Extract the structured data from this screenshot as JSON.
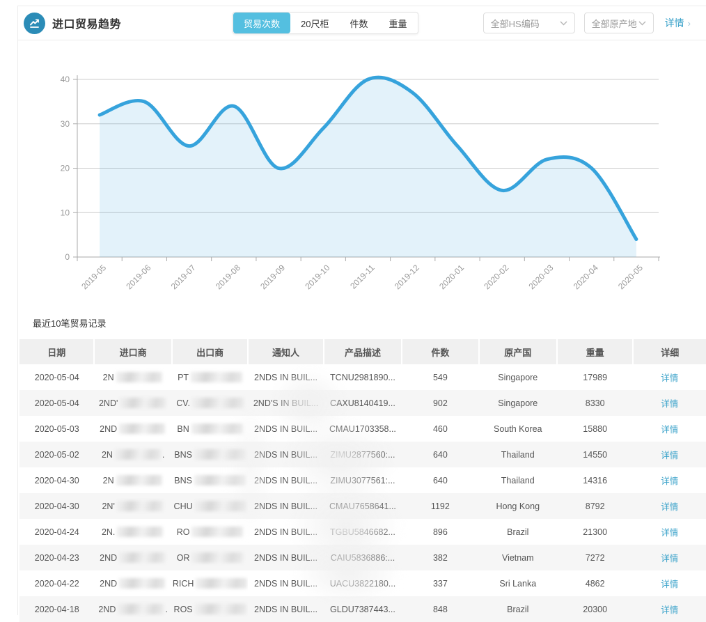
{
  "header": {
    "title": "进口贸易趋势",
    "metric_tabs": [
      {
        "label": "贸易次数",
        "active": true
      },
      {
        "label": "20尺柜",
        "active": false
      },
      {
        "label": "件数",
        "active": false
      },
      {
        "label": "重量",
        "active": false
      }
    ],
    "hs_filter": "全部HS编码",
    "origin_filter": "全部原产地",
    "details_link": "详情",
    "details_arrow": "›"
  },
  "colors": {
    "accent": "#54bfe0",
    "line": "#36a3dc",
    "fill": "rgba(54,163,220,0.14)",
    "link": "#3aa2ca",
    "icon_bg": "#2b8cb7"
  },
  "chart_data": {
    "type": "area",
    "smooth": true,
    "grid": true,
    "x": [
      "2019-05",
      "2019-06",
      "2019-07",
      "2019-08",
      "2019-09",
      "2019-10",
      "2019-11",
      "2019-12",
      "2020-01",
      "2020-02",
      "2020-03",
      "2020-04",
      "2020-05"
    ],
    "values": [
      32,
      35,
      25,
      34,
      20,
      29,
      40,
      37,
      25,
      15,
      22,
      20,
      4
    ],
    "ylim": [
      0,
      40
    ],
    "yticks": [
      0,
      10,
      20,
      30,
      40
    ],
    "xlabel": "",
    "ylabel": "",
    "line_color": "#36a3dc",
    "fill_color": "rgba(54,163,220,0.14)"
  },
  "table": {
    "section_title": "最近10笔贸易记录",
    "columns": [
      "日期",
      "进口商",
      "出口商",
      "通知人",
      "产品描述",
      "件数",
      "原产国",
      "重量",
      "详细"
    ],
    "detail_label": "详情",
    "rows": [
      {
        "date": "2020-05-04",
        "importer": "2N",
        "importer_suffix": "",
        "exporter": "PT",
        "notify": "2NDS IN BUIL...",
        "product": "TCNU2981890...",
        "pieces": "549",
        "origin": "Singapore",
        "weight": "17989"
      },
      {
        "date": "2020-05-04",
        "importer": "2ND'",
        "importer_suffix": "",
        "exporter": "CV.",
        "notify": "2ND'S IN BUIL...",
        "product": "CAXU8140419...",
        "pieces": "902",
        "origin": "Singapore",
        "weight": "8330"
      },
      {
        "date": "2020-05-03",
        "importer": "2ND",
        "importer_suffix": "",
        "exporter": "BN",
        "notify": "2NDS IN BUIL...",
        "product": "CMAU1703358...",
        "pieces": "460",
        "origin": "South Korea",
        "weight": "15880"
      },
      {
        "date": "2020-05-02",
        "importer": "2N",
        "importer_suffix": ".",
        "exporter": "BNS",
        "notify": "2NDS IN BUIL...",
        "product": "ZIMU2877560:...",
        "pieces": "640",
        "origin": "Thailand",
        "weight": "14550"
      },
      {
        "date": "2020-04-30",
        "importer": "2N",
        "importer_suffix": "",
        "exporter": "BNS",
        "notify": "2NDS IN BUIL...",
        "product": "ZIMU3077561:...",
        "pieces": "640",
        "origin": "Thailand",
        "weight": "14316"
      },
      {
        "date": "2020-04-30",
        "importer": "2N'",
        "importer_suffix": "",
        "exporter": "CHU",
        "notify": "2NDS IN BUIL...",
        "product": "CMAU7658641...",
        "pieces": "1192",
        "origin": "Hong Kong",
        "weight": "8792"
      },
      {
        "date": "2020-04-24",
        "importer": "2N.",
        "importer_suffix": "",
        "exporter": "RO",
        "notify": "2NDS IN BUIL...",
        "product": "TGBU5846682...",
        "pieces": "896",
        "origin": "Brazil",
        "weight": "21300"
      },
      {
        "date": "2020-04-23",
        "importer": "2ND",
        "importer_suffix": "",
        "exporter": "OR",
        "notify": "2NDS IN BUIL...",
        "product": "CAIU5836886:...",
        "pieces": "382",
        "origin": "Vietnam",
        "weight": "7272"
      },
      {
        "date": "2020-04-22",
        "importer": "2ND",
        "importer_suffix": "",
        "exporter": "RICH",
        "notify": "2NDS IN BUIL...",
        "product": "UACU3822180...",
        "pieces": "337",
        "origin": "Sri Lanka",
        "weight": "4862"
      },
      {
        "date": "2020-04-18",
        "importer": "2ND",
        "importer_suffix": ".",
        "exporter": "ROS",
        "notify": "2NDS IN BUIL...",
        "product": "GLDU7387443...",
        "pieces": "848",
        "origin": "Brazil",
        "weight": "20300"
      }
    ]
  }
}
